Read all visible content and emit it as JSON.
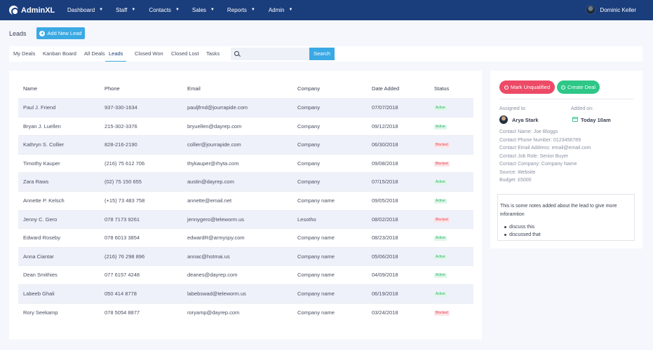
{
  "app": {
    "brand": "AdminXL"
  },
  "nav": {
    "items": [
      {
        "label": "Dashboard"
      },
      {
        "label": "Staff"
      },
      {
        "label": "Contacts"
      },
      {
        "label": "Sales"
      },
      {
        "label": "Reports"
      },
      {
        "label": "Admin"
      }
    ],
    "user_name": "Dominic Keller"
  },
  "header": {
    "title": "Leads",
    "add_button": "Add New Lead"
  },
  "tabs": [
    {
      "label": "My Deals"
    },
    {
      "label": "Kanban Board"
    },
    {
      "label": "All Deals"
    },
    {
      "label": "Leads",
      "active": true
    },
    {
      "label": "Closed Won"
    },
    {
      "label": "Closed Lost"
    },
    {
      "label": "Tasks"
    }
  ],
  "search": {
    "placeholder": "",
    "value": "",
    "button": "Search"
  },
  "table": {
    "columns": [
      "Name",
      "Phone",
      "Email",
      "Company",
      "Date Added",
      "Status"
    ],
    "rows": [
      {
        "name": "Paul J. Friend",
        "phone": "937-330-1634",
        "email": "pauljfrnd@jourrapide.com",
        "company": "Company",
        "date": "07/07/2018",
        "status": "Active"
      },
      {
        "name": "Bryan J. Luellen",
        "phone": "215-302-3376",
        "email": "bryuellen@dayrep.com",
        "company": "Company",
        "date": "09/12/2018",
        "status": "Active"
      },
      {
        "name": "Kathryn S. Collier",
        "phone": "828-216-2190",
        "email": "collier@jourrapide.com",
        "company": "Company",
        "date": "06/30/2018",
        "status": "Blocked"
      },
      {
        "name": "Timothy Kauper",
        "phone": "(216) 75 612 706",
        "email": "thykauper@rhyta.com",
        "company": "Company",
        "date": "09/08/2018",
        "status": "Blocked"
      },
      {
        "name": "Zara Raws",
        "phone": "(02) 75 150 655",
        "email": "austin@dayrep.com",
        "company": "Company",
        "date": "07/15/2018",
        "status": "Active"
      },
      {
        "name": "Annette P. Kelsch",
        "phone": "(+15) 73 483 758",
        "email": "annette@email.net",
        "company": "Company name",
        "date": "09/05/2018",
        "status": "Active"
      },
      {
        "name": "Jenny C. Gero",
        "phone": "078 7173 9261",
        "email": "jennygero@teleworm.us",
        "company": "Lesotho",
        "date": "08/02/2018",
        "status": "Blocked"
      },
      {
        "name": "Edward Roseby",
        "phone": "078 6013 3854",
        "email": "edwardR@armyspy.com",
        "company": "Company name",
        "date": "08/23/2018",
        "status": "Active"
      },
      {
        "name": "Anna Ciantar",
        "phone": "(216) 76 298 896",
        "email": "annac@hotmai.us",
        "company": "Company name",
        "date": "05/06/2018",
        "status": "Active"
      },
      {
        "name": "Dean Smithies",
        "phone": "077 6157 4248",
        "email": "deanes@dayrep.com",
        "company": "Company name",
        "date": "04/09/2018",
        "status": "Active"
      },
      {
        "name": "Labeeb Ghali",
        "phone": "050 414 8778",
        "email": "labebswad@teleworm.us",
        "company": "Company name",
        "date": "06/19/2018",
        "status": "Active"
      },
      {
        "name": "Rory Seekamp",
        "phone": "078 5054 8877",
        "email": "roryamp@dayrep.com",
        "company": "Company name",
        "date": "03/24/2018",
        "status": "Blocked"
      }
    ]
  },
  "side": {
    "unqualified_button": "Mark Unqualified",
    "create_deal_button": "Create Deal",
    "assigned_label": "Assigned to:",
    "assigned_name": "Arya Stark",
    "added_label": "Added on:",
    "added_value": "Today 10am",
    "info": [
      "Contact Name: Joe Bloggs",
      "Contact Phone Number: 0123456789",
      "Contact Email Address: email@email.com",
      "Contact Job Role: Senior Buyer",
      "Contact Company: Company Name",
      "Source: Website",
      "Budget: £5000"
    ],
    "notes_text": "This is some notes added about the lead to give more inforamtion",
    "notes_items": [
      "discuss this",
      "discussed that"
    ]
  },
  "colors": {
    "nav_bg": "#1a3d7c",
    "accent": "#3aa9e4",
    "active_badge": "#2fb36b",
    "blocked_badge": "#e8404f",
    "unqualified": "#ec4a66",
    "create_deal": "#2ec787"
  }
}
